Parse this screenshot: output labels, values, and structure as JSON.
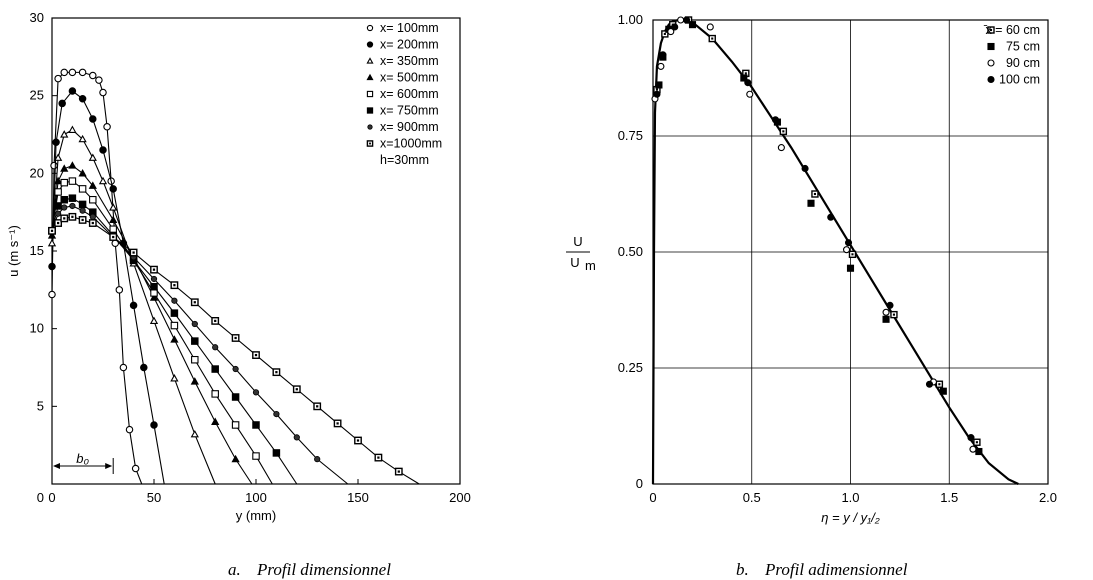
{
  "chart_data": [
    {
      "type": "line",
      "caption_letter": "a.",
      "caption_text": "Profil dimensionnel",
      "xlabel": "y (mm)",
      "ylabel": "u (m s⁻¹)",
      "xlim": [
        0,
        200
      ],
      "ylim": [
        0,
        30
      ],
      "xticks": [
        0,
        50,
        100,
        150,
        200
      ],
      "yticks": [
        5,
        10,
        15,
        20,
        25,
        30
      ],
      "grid": false,
      "legend_position": "top-right",
      "legend_extra": "h=30mm",
      "annotation": "b₀",
      "annotation_span": [
        0,
        30
      ],
      "series": [
        {
          "name": "x=  100mm",
          "marker": "open-circle",
          "x": [
            0,
            1,
            3,
            6,
            10,
            15,
            20,
            23,
            25,
            27,
            29,
            31,
            33,
            35,
            38,
            41,
            44
          ],
          "y": [
            12.2,
            20.5,
            26.1,
            26.5,
            26.5,
            26.5,
            26.3,
            26.0,
            25.2,
            23.0,
            19.5,
            15.5,
            12.5,
            7.5,
            3.5,
            1.0,
            0
          ]
        },
        {
          "name": "x=  200mm",
          "marker": "filled-circle",
          "x": [
            0,
            2,
            5,
            10,
            15,
            20,
            25,
            30,
            35,
            40,
            45,
            50,
            55
          ],
          "y": [
            14.0,
            22.0,
            24.5,
            25.3,
            24.8,
            23.5,
            21.5,
            19.0,
            15.5,
            11.5,
            7.5,
            3.8,
            0
          ]
        },
        {
          "name": "x=  350mm",
          "marker": "open-triangle",
          "x": [
            0,
            3,
            6,
            10,
            15,
            20,
            25,
            30,
            40,
            50,
            60,
            70,
            80
          ],
          "y": [
            15.5,
            21.0,
            22.5,
            22.8,
            22.2,
            21.0,
            19.5,
            17.8,
            14.2,
            10.5,
            6.8,
            3.2,
            0
          ]
        },
        {
          "name": "x=  500mm",
          "marker": "filled-triangle",
          "x": [
            0,
            3,
            6,
            10,
            15,
            20,
            30,
            40,
            50,
            60,
            70,
            80,
            90,
            98
          ],
          "y": [
            16.0,
            19.5,
            20.3,
            20.5,
            20.0,
            19.2,
            17.0,
            14.6,
            12.0,
            9.3,
            6.6,
            4.0,
            1.6,
            0
          ]
        },
        {
          "name": "x=  600mm",
          "marker": "open-square",
          "x": [
            0,
            3,
            6,
            10,
            15,
            20,
            30,
            40,
            50,
            60,
            70,
            80,
            90,
            100,
            108
          ],
          "y": [
            16.3,
            18.8,
            19.4,
            19.5,
            19.0,
            18.3,
            16.4,
            14.4,
            12.3,
            10.2,
            8.0,
            5.8,
            3.8,
            1.8,
            0
          ]
        },
        {
          "name": "x=  750mm",
          "marker": "filled-square",
          "x": [
            0,
            3,
            6,
            10,
            15,
            20,
            30,
            40,
            50,
            60,
            70,
            80,
            90,
            100,
            110,
            120
          ],
          "y": [
            16.3,
            17.9,
            18.3,
            18.4,
            18.0,
            17.5,
            16.0,
            14.4,
            12.7,
            11.0,
            9.2,
            7.4,
            5.6,
            3.8,
            2.0,
            0
          ]
        },
        {
          "name": "x=  900mm",
          "marker": "filled-circle-small",
          "x": [
            0,
            3,
            6,
            10,
            15,
            20,
            30,
            40,
            50,
            60,
            70,
            80,
            90,
            100,
            110,
            120,
            130,
            145
          ],
          "y": [
            16.3,
            17.4,
            17.8,
            17.9,
            17.6,
            17.2,
            15.9,
            14.6,
            13.2,
            11.8,
            10.3,
            8.8,
            7.4,
            5.9,
            4.5,
            3.0,
            1.6,
            0
          ]
        },
        {
          "name": "x=1000mm",
          "marker": "dotted-square",
          "x": [
            0,
            3,
            6,
            10,
            15,
            20,
            30,
            40,
            50,
            60,
            70,
            80,
            90,
            100,
            110,
            120,
            130,
            140,
            150,
            160,
            170,
            180
          ],
          "y": [
            16.3,
            16.8,
            17.1,
            17.2,
            17.0,
            16.8,
            15.9,
            14.9,
            13.8,
            12.8,
            11.7,
            10.5,
            9.4,
            8.3,
            7.2,
            6.1,
            5.0,
            3.9,
            2.8,
            1.7,
            0.8,
            0
          ]
        }
      ]
    },
    {
      "type": "scatter",
      "caption_letter": "b.",
      "caption_text": "Profil adimensionnel",
      "xlabel": "η = y / y₁/₂",
      "ylabel_num": "U",
      "ylabel_den": "U",
      "ylabel_den_sub": "m",
      "xlim": [
        0,
        2.0
      ],
      "ylim": [
        0,
        1.0
      ],
      "xticks": [
        "0",
        "0.5",
        "1.0",
        "1.5",
        "2.0"
      ],
      "yticks": [
        "0",
        "0.25",
        "0.50",
        "0.75",
        "1.00"
      ],
      "grid": true,
      "legend_position": "top-right",
      "curve": {
        "x": [
          0.0,
          0.005,
          0.01,
          0.02,
          0.04,
          0.06,
          0.08,
          0.1,
          0.13,
          0.16,
          0.2,
          0.3,
          0.4,
          0.5,
          0.6,
          0.7,
          0.8,
          0.9,
          1.0,
          1.1,
          1.2,
          1.3,
          1.4,
          1.5,
          1.6,
          1.7,
          1.8,
          1.85
        ],
        "y": [
          0.0,
          0.5,
          0.8,
          0.9,
          0.95,
          0.975,
          0.99,
          0.997,
          1.0,
          1.0,
          0.995,
          0.96,
          0.91,
          0.855,
          0.79,
          0.725,
          0.655,
          0.585,
          0.515,
          0.445,
          0.375,
          0.305,
          0.235,
          0.165,
          0.1,
          0.045,
          0.01,
          0.0
        ]
      },
      "series": [
        {
          "name": "̄x = 60 cm",
          "marker": "dotted-square",
          "x": [
            0.02,
            0.06,
            0.1,
            0.18,
            0.3,
            0.47,
            0.66,
            0.82,
            1.01,
            1.22,
            1.45,
            1.64
          ],
          "y": [
            0.85,
            0.97,
            0.99,
            1.0,
            0.96,
            0.885,
            0.76,
            0.625,
            0.495,
            0.365,
            0.215,
            0.09
          ]
        },
        {
          "name": "75 cm",
          "marker": "filled-square",
          "x": [
            0.03,
            0.05,
            0.08,
            0.2,
            0.46,
            0.63,
            0.8,
            1.0,
            1.18,
            1.47,
            1.65
          ],
          "y": [
            0.86,
            0.92,
            0.98,
            0.99,
            0.875,
            0.78,
            0.605,
            0.465,
            0.355,
            0.2,
            0.07
          ]
        },
        {
          "name": "90 cm",
          "marker": "open-circle",
          "x": [
            0.01,
            0.04,
            0.09,
            0.14,
            0.29,
            0.49,
            0.65,
            0.98,
            1.18,
            1.42,
            1.62
          ],
          "y": [
            0.83,
            0.9,
            0.975,
            1.0,
            0.985,
            0.84,
            0.725,
            0.505,
            0.37,
            0.22,
            0.075
          ]
        },
        {
          "name": "100 cm",
          "marker": "filled-circle",
          "x": [
            0.02,
            0.05,
            0.11,
            0.17,
            0.48,
            0.62,
            0.77,
            0.9,
            0.99,
            1.2,
            1.4,
            1.61
          ],
          "y": [
            0.84,
            0.925,
            0.985,
            1.0,
            0.865,
            0.785,
            0.68,
            0.575,
            0.52,
            0.385,
            0.215,
            0.1
          ]
        }
      ]
    }
  ]
}
